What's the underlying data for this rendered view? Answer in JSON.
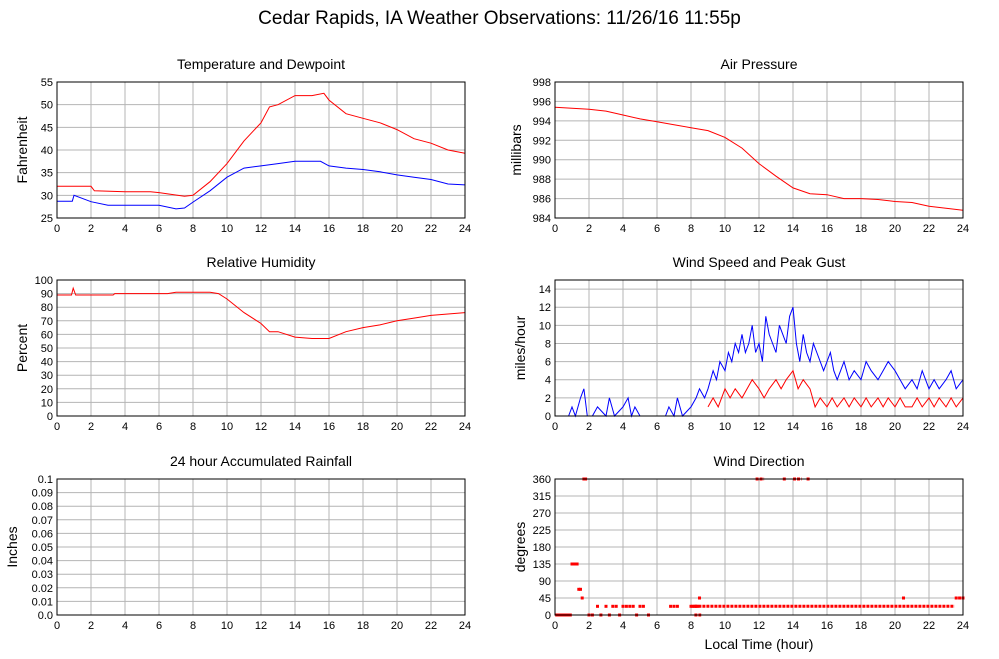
{
  "page": {
    "title": "Cedar Rapids, IA Weather Observations: 11/26/16 11:55p"
  },
  "xaxis_label": "Local Time (hour)",
  "colors": {
    "red": "#ff0000",
    "blue": "#0000ff"
  },
  "chart_data": [
    {
      "id": "temp",
      "type": "line",
      "title": "Temperature and Dewpoint",
      "ylabel": "Fahrenheit",
      "xlim": [
        0,
        24
      ],
      "ylim": [
        25,
        55
      ],
      "yticks": [
        25,
        30,
        35,
        40,
        45,
        50,
        55
      ],
      "xticks": [
        0,
        2,
        4,
        6,
        8,
        10,
        12,
        14,
        16,
        18,
        20,
        22,
        24
      ],
      "grid": true,
      "series": [
        {
          "color": "#ff0000",
          "x": [
            0,
            2,
            2.2,
            4,
            5.5,
            6,
            7.5,
            8,
            9,
            10,
            11,
            12,
            12.5,
            13,
            14,
            15,
            15.7,
            16,
            17,
            18,
            19,
            20,
            21,
            22,
            23,
            24
          ],
          "y": [
            32,
            32,
            31,
            30.8,
            30.8,
            30.6,
            29.8,
            30,
            33,
            37,
            42,
            46,
            49.5,
            50,
            52,
            52,
            52.5,
            51,
            48,
            47,
            46,
            44.5,
            42.5,
            41.5,
            40,
            39.3
          ]
        },
        {
          "color": "#0000ff",
          "x": [
            0,
            0.9,
            1,
            2,
            3,
            4,
            5,
            6,
            7,
            7.5,
            8,
            9,
            10,
            11,
            12,
            13,
            14,
            15,
            15.5,
            16,
            17,
            18,
            19,
            20,
            21,
            22,
            23,
            24
          ],
          "y": [
            28.7,
            28.7,
            30,
            28.6,
            27.8,
            27.8,
            27.8,
            27.8,
            27,
            27.2,
            28.5,
            31,
            34,
            36,
            36.5,
            37,
            37.5,
            37.5,
            37.5,
            36.5,
            36,
            35.7,
            35.2,
            34.5,
            34,
            33.5,
            32.5,
            32.3
          ]
        }
      ]
    },
    {
      "id": "pressure",
      "type": "line",
      "title": "Air Pressure",
      "ylabel": "millibars",
      "xlim": [
        0,
        24
      ],
      "ylim": [
        984,
        998
      ],
      "yticks": [
        984,
        986,
        988,
        990,
        992,
        994,
        996,
        998
      ],
      "xticks": [
        0,
        2,
        4,
        6,
        8,
        10,
        12,
        14,
        16,
        18,
        20,
        22,
        24
      ],
      "grid": true,
      "series": [
        {
          "color": "#ff0000",
          "x": [
            0,
            1,
            2,
            3,
            4,
            5,
            6,
            7,
            8,
            9,
            10,
            11,
            12,
            13,
            14,
            15,
            16,
            17,
            18,
            19,
            20,
            21,
            22,
            23,
            24
          ],
          "y": [
            995.4,
            995.3,
            995.2,
            995,
            994.6,
            994.2,
            993.9,
            993.6,
            993.3,
            993.0,
            992.3,
            991.2,
            989.6,
            988.3,
            987.1,
            986.5,
            986.4,
            986.0,
            986.0,
            985.9,
            985.7,
            985.6,
            985.2,
            985.0,
            984.8
          ]
        }
      ]
    },
    {
      "id": "humidity",
      "type": "line",
      "title": "Relative Humidity",
      "ylabel": "Percent",
      "xlim": [
        0,
        24
      ],
      "ylim": [
        0,
        100
      ],
      "yticks": [
        0,
        10,
        20,
        30,
        40,
        50,
        60,
        70,
        80,
        90,
        100
      ],
      "xticks": [
        0,
        2,
        4,
        6,
        8,
        10,
        12,
        14,
        16,
        18,
        20,
        22,
        24
      ],
      "grid": true,
      "series": [
        {
          "color": "#ff0000",
          "x": [
            0,
            0.85,
            0.95,
            1.1,
            3.3,
            3.4,
            6.5,
            7,
            8,
            9,
            9.5,
            10,
            11,
            12,
            12.5,
            13,
            14,
            15,
            16,
            17,
            18,
            19,
            20,
            21,
            22,
            23,
            24
          ],
          "y": [
            89,
            89,
            94,
            89,
            89,
            90,
            90,
            91,
            91,
            91,
            90,
            86,
            76,
            68,
            62,
            62,
            58,
            57,
            57,
            62,
            65,
            67,
            70,
            72,
            74,
            75,
            76
          ]
        }
      ]
    },
    {
      "id": "wind",
      "type": "line",
      "title": "Wind Speed and Peak Gust",
      "ylabel": "miles/hour",
      "xlim": [
        0,
        24
      ],
      "ylim": [
        0,
        15
      ],
      "yticks": [
        0,
        2,
        4,
        6,
        8,
        10,
        12,
        14
      ],
      "xticks": [
        0,
        2,
        4,
        6,
        8,
        10,
        12,
        14,
        16,
        18,
        20,
        22,
        24
      ],
      "grid": true,
      "series": [
        {
          "color": "#0000ff",
          "x": [
            0.8,
            1,
            1.2,
            1.5,
            1.7,
            1.9,
            2.2,
            2.5,
            3,
            3.2,
            3.5,
            4,
            4.3,
            4.5,
            4.7,
            5,
            6.5,
            6.7,
            7,
            7.2,
            7.5,
            8,
            8.3,
            8.5,
            8.8,
            9,
            9.3,
            9.5,
            9.7,
            10,
            10.2,
            10.4,
            10.6,
            10.8,
            11,
            11.2,
            11.4,
            11.6,
            11.8,
            12,
            12.2,
            12.4,
            12.6,
            12.8,
            13,
            13.2,
            13.4,
            13.6,
            13.8,
            14,
            14.2,
            14.4,
            14.6,
            14.8,
            15,
            15.2,
            15.4,
            15.6,
            15.8,
            16,
            16.2,
            16.4,
            16.6,
            16.8,
            17,
            17.3,
            17.6,
            18,
            18.3,
            18.6,
            19,
            19.3,
            19.6,
            20,
            20.3,
            20.6,
            21,
            21.3,
            21.6,
            22,
            22.3,
            22.6,
            23,
            23.3,
            23.6,
            24
          ],
          "y": [
            0,
            1,
            0,
            2,
            3,
            0,
            0,
            1,
            0,
            2,
            0,
            1,
            2,
            0,
            1,
            0,
            0,
            1,
            0,
            2,
            0,
            1,
            2,
            3,
            2,
            3,
            5,
            4,
            6,
            5,
            7,
            6,
            8,
            7,
            9,
            7,
            8,
            10,
            7,
            8,
            6,
            11,
            9,
            8,
            7,
            10,
            9,
            8,
            11,
            12,
            8,
            6,
            9,
            7,
            6,
            8,
            7,
            6,
            5,
            6,
            7,
            5,
            4,
            5,
            6,
            4,
            5,
            4,
            6,
            5,
            4,
            5,
            6,
            5,
            4,
            3,
            4,
            3,
            5,
            3,
            4,
            3,
            4,
            5,
            3,
            4
          ]
        },
        {
          "color": "#ff0000",
          "x": [
            9,
            9.3,
            9.6,
            10,
            10.3,
            10.6,
            11,
            11.3,
            11.6,
            12,
            12.3,
            12.6,
            13,
            13.3,
            13.6,
            14,
            14.3,
            14.6,
            15,
            15.3,
            15.6,
            16,
            16.3,
            16.6,
            17,
            17.3,
            17.6,
            18,
            18.3,
            18.6,
            19,
            19.3,
            19.6,
            20,
            20.3,
            20.6,
            21,
            21.3,
            21.6,
            22,
            22.3,
            22.6,
            23,
            23.3,
            23.6,
            24
          ],
          "y": [
            1,
            2,
            1,
            3,
            2,
            3,
            2,
            3,
            4,
            3,
            2,
            3,
            4,
            3,
            4,
            5,
            3,
            4,
            3,
            1,
            2,
            1,
            2,
            1,
            2,
            1,
            2,
            1,
            2,
            1,
            2,
            1,
            2,
            1,
            2,
            1,
            1,
            2,
            1,
            2,
            1,
            2,
            1,
            2,
            1,
            2
          ]
        }
      ]
    },
    {
      "id": "rain",
      "type": "line",
      "title": "24 hour Accumulated Rainfall",
      "ylabel": "Inches",
      "xlim": [
        0,
        24
      ],
      "ylim": [
        0,
        0.1
      ],
      "yticks": [
        0.0,
        0.01,
        0.02,
        0.03,
        0.04,
        0.05,
        0.06,
        0.07,
        0.08,
        0.09,
        0.1
      ],
      "xticks": [
        0,
        2,
        4,
        6,
        8,
        10,
        12,
        14,
        16,
        18,
        20,
        22,
        24
      ],
      "grid": true,
      "series": [
        {
          "color": "#ff0000",
          "x": [
            0,
            24
          ],
          "y": [
            0,
            0
          ]
        }
      ]
    },
    {
      "id": "winddir",
      "type": "scatter",
      "title": "Wind Direction",
      "ylabel": "degrees",
      "xlabel": "Local Time (hour)",
      "xlim": [
        0,
        24
      ],
      "ylim": [
        0,
        360
      ],
      "yticks": [
        0,
        45,
        90,
        135,
        180,
        225,
        270,
        315,
        360
      ],
      "xticks": [
        0,
        2,
        4,
        6,
        8,
        10,
        12,
        14,
        16,
        18,
        20,
        22,
        24
      ],
      "grid": true,
      "series": [
        {
          "color": "#ff0000",
          "x": [
            0.1,
            0.2,
            0.3,
            0.4,
            0.5,
            0.6,
            0.7,
            0.8,
            0.9,
            1.0,
            1.1,
            1.2,
            1.3,
            1.4,
            1.5,
            1.6,
            1.7,
            1.8,
            2.0,
            2.2,
            2.5,
            2.7,
            3.0,
            3.2,
            3.4,
            3.6,
            3.8,
            4.0,
            4.2,
            4.4,
            4.6,
            4.8,
            5.0,
            5.2,
            5.5,
            6.8,
            7.0,
            7.2,
            8.0,
            8.1,
            8.2,
            8.3,
            8.4,
            8.5,
            20.5,
            23.6,
            23.8,
            24.0
          ],
          "y": [
            0,
            0,
            0,
            0,
            0,
            0,
            0,
            0,
            0,
            135,
            135,
            135,
            135,
            68,
            68,
            45,
            360,
            360,
            0,
            0,
            23,
            0,
            23,
            0,
            23,
            23,
            0,
            23,
            23,
            23,
            23,
            0,
            23,
            23,
            0,
            23,
            23,
            23,
            23,
            23,
            23,
            23,
            23,
            45,
            45,
            45,
            45,
            45
          ]
        }
      ],
      "bands": [
        {
          "x0": 8.2,
          "x1": 23.5,
          "y": 23
        },
        {
          "x0": 8.2,
          "x1": 8.6,
          "y": 0
        },
        {
          "x0": 11.8,
          "x1": 12.3,
          "y": 360
        },
        {
          "x0": 13.4,
          "x1": 13.6,
          "y": 360
        },
        {
          "x0": 14.0,
          "x1": 14.5,
          "y": 360
        },
        {
          "x0": 14.8,
          "x1": 15.0,
          "y": 360
        }
      ]
    }
  ]
}
